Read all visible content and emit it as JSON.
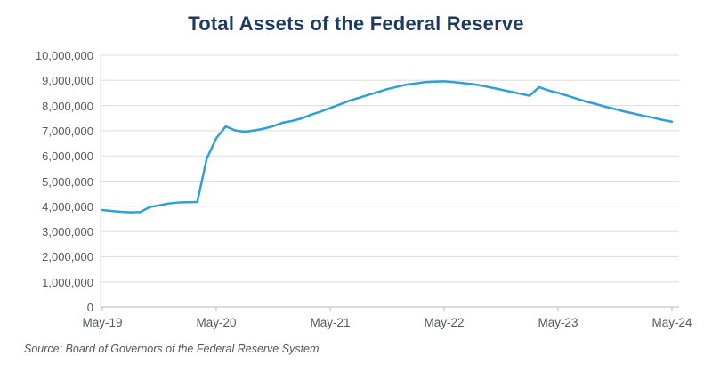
{
  "title": "Total Assets of the Federal Reserve",
  "source_note": "Source: Board of Governors of the Federal Reserve System",
  "colors": {
    "line": "#2e9fd9",
    "title_text": "#1e3a5f",
    "axis_text": "#58595b",
    "gridline": "#dcdcdc",
    "axis_line": "#b9b9b9",
    "source_text": "#55565a"
  },
  "chart_data": {
    "type": "line",
    "title": "Total Assets of the Federal Reserve",
    "xlabel": "",
    "ylabel": "",
    "ylim": [
      0,
      10000000
    ],
    "y_step": 1000000,
    "grid": "horizontal",
    "legend": "none",
    "y_tick_labels": [
      "0",
      "1,000,000",
      "2,000,000",
      "3,000,000",
      "4,000,000",
      "5,000,000",
      "6,000,000",
      "7,000,000",
      "8,000,000",
      "9,000,000",
      "10,000,000"
    ],
    "x_tick_labels": [
      "May-19",
      "May-20",
      "May-21",
      "May-22",
      "May-23",
      "May-24"
    ],
    "categories": [
      "May-19",
      "Jun-19",
      "Jul-19",
      "Aug-19",
      "Sep-19",
      "Oct-19",
      "Nov-19",
      "Dec-19",
      "Jan-20",
      "Feb-20",
      "Mar-20",
      "Apr-20",
      "May-20",
      "Jun-20",
      "Jul-20",
      "Aug-20",
      "Sep-20",
      "Oct-20",
      "Nov-20",
      "Dec-20",
      "Jan-21",
      "Feb-21",
      "Mar-21",
      "Apr-21",
      "May-21",
      "Jun-21",
      "Jul-21",
      "Aug-21",
      "Sep-21",
      "Oct-21",
      "Nov-21",
      "Dec-21",
      "Jan-22",
      "Feb-22",
      "Mar-22",
      "Apr-22",
      "May-22",
      "Jun-22",
      "Jul-22",
      "Aug-22",
      "Sep-22",
      "Oct-22",
      "Nov-22",
      "Dec-22",
      "Jan-23",
      "Feb-23",
      "Mar-23",
      "Apr-23",
      "May-23",
      "Jun-23",
      "Jul-23",
      "Aug-23",
      "Sep-23",
      "Oct-23",
      "Nov-23",
      "Dec-23",
      "Jan-24",
      "Feb-24",
      "Mar-24",
      "Apr-24",
      "May-24"
    ],
    "values": [
      3850000,
      3810000,
      3780000,
      3760000,
      3770000,
      3970000,
      4040000,
      4110000,
      4150000,
      4160000,
      4170000,
      5900000,
      6700000,
      7170000,
      7010000,
      6960000,
      7010000,
      7080000,
      7180000,
      7320000,
      7390000,
      7490000,
      7640000,
      7760000,
      7900000,
      8040000,
      8190000,
      8300000,
      8420000,
      8530000,
      8650000,
      8740000,
      8830000,
      8880000,
      8930000,
      8950000,
      8960000,
      8930000,
      8890000,
      8850000,
      8790000,
      8710000,
      8630000,
      8550000,
      8470000,
      8390000,
      8730000,
      8600000,
      8500000,
      8390000,
      8270000,
      8150000,
      8060000,
      7950000,
      7860000,
      7760000,
      7680000,
      7590000,
      7520000,
      7430000,
      7360000
    ]
  }
}
